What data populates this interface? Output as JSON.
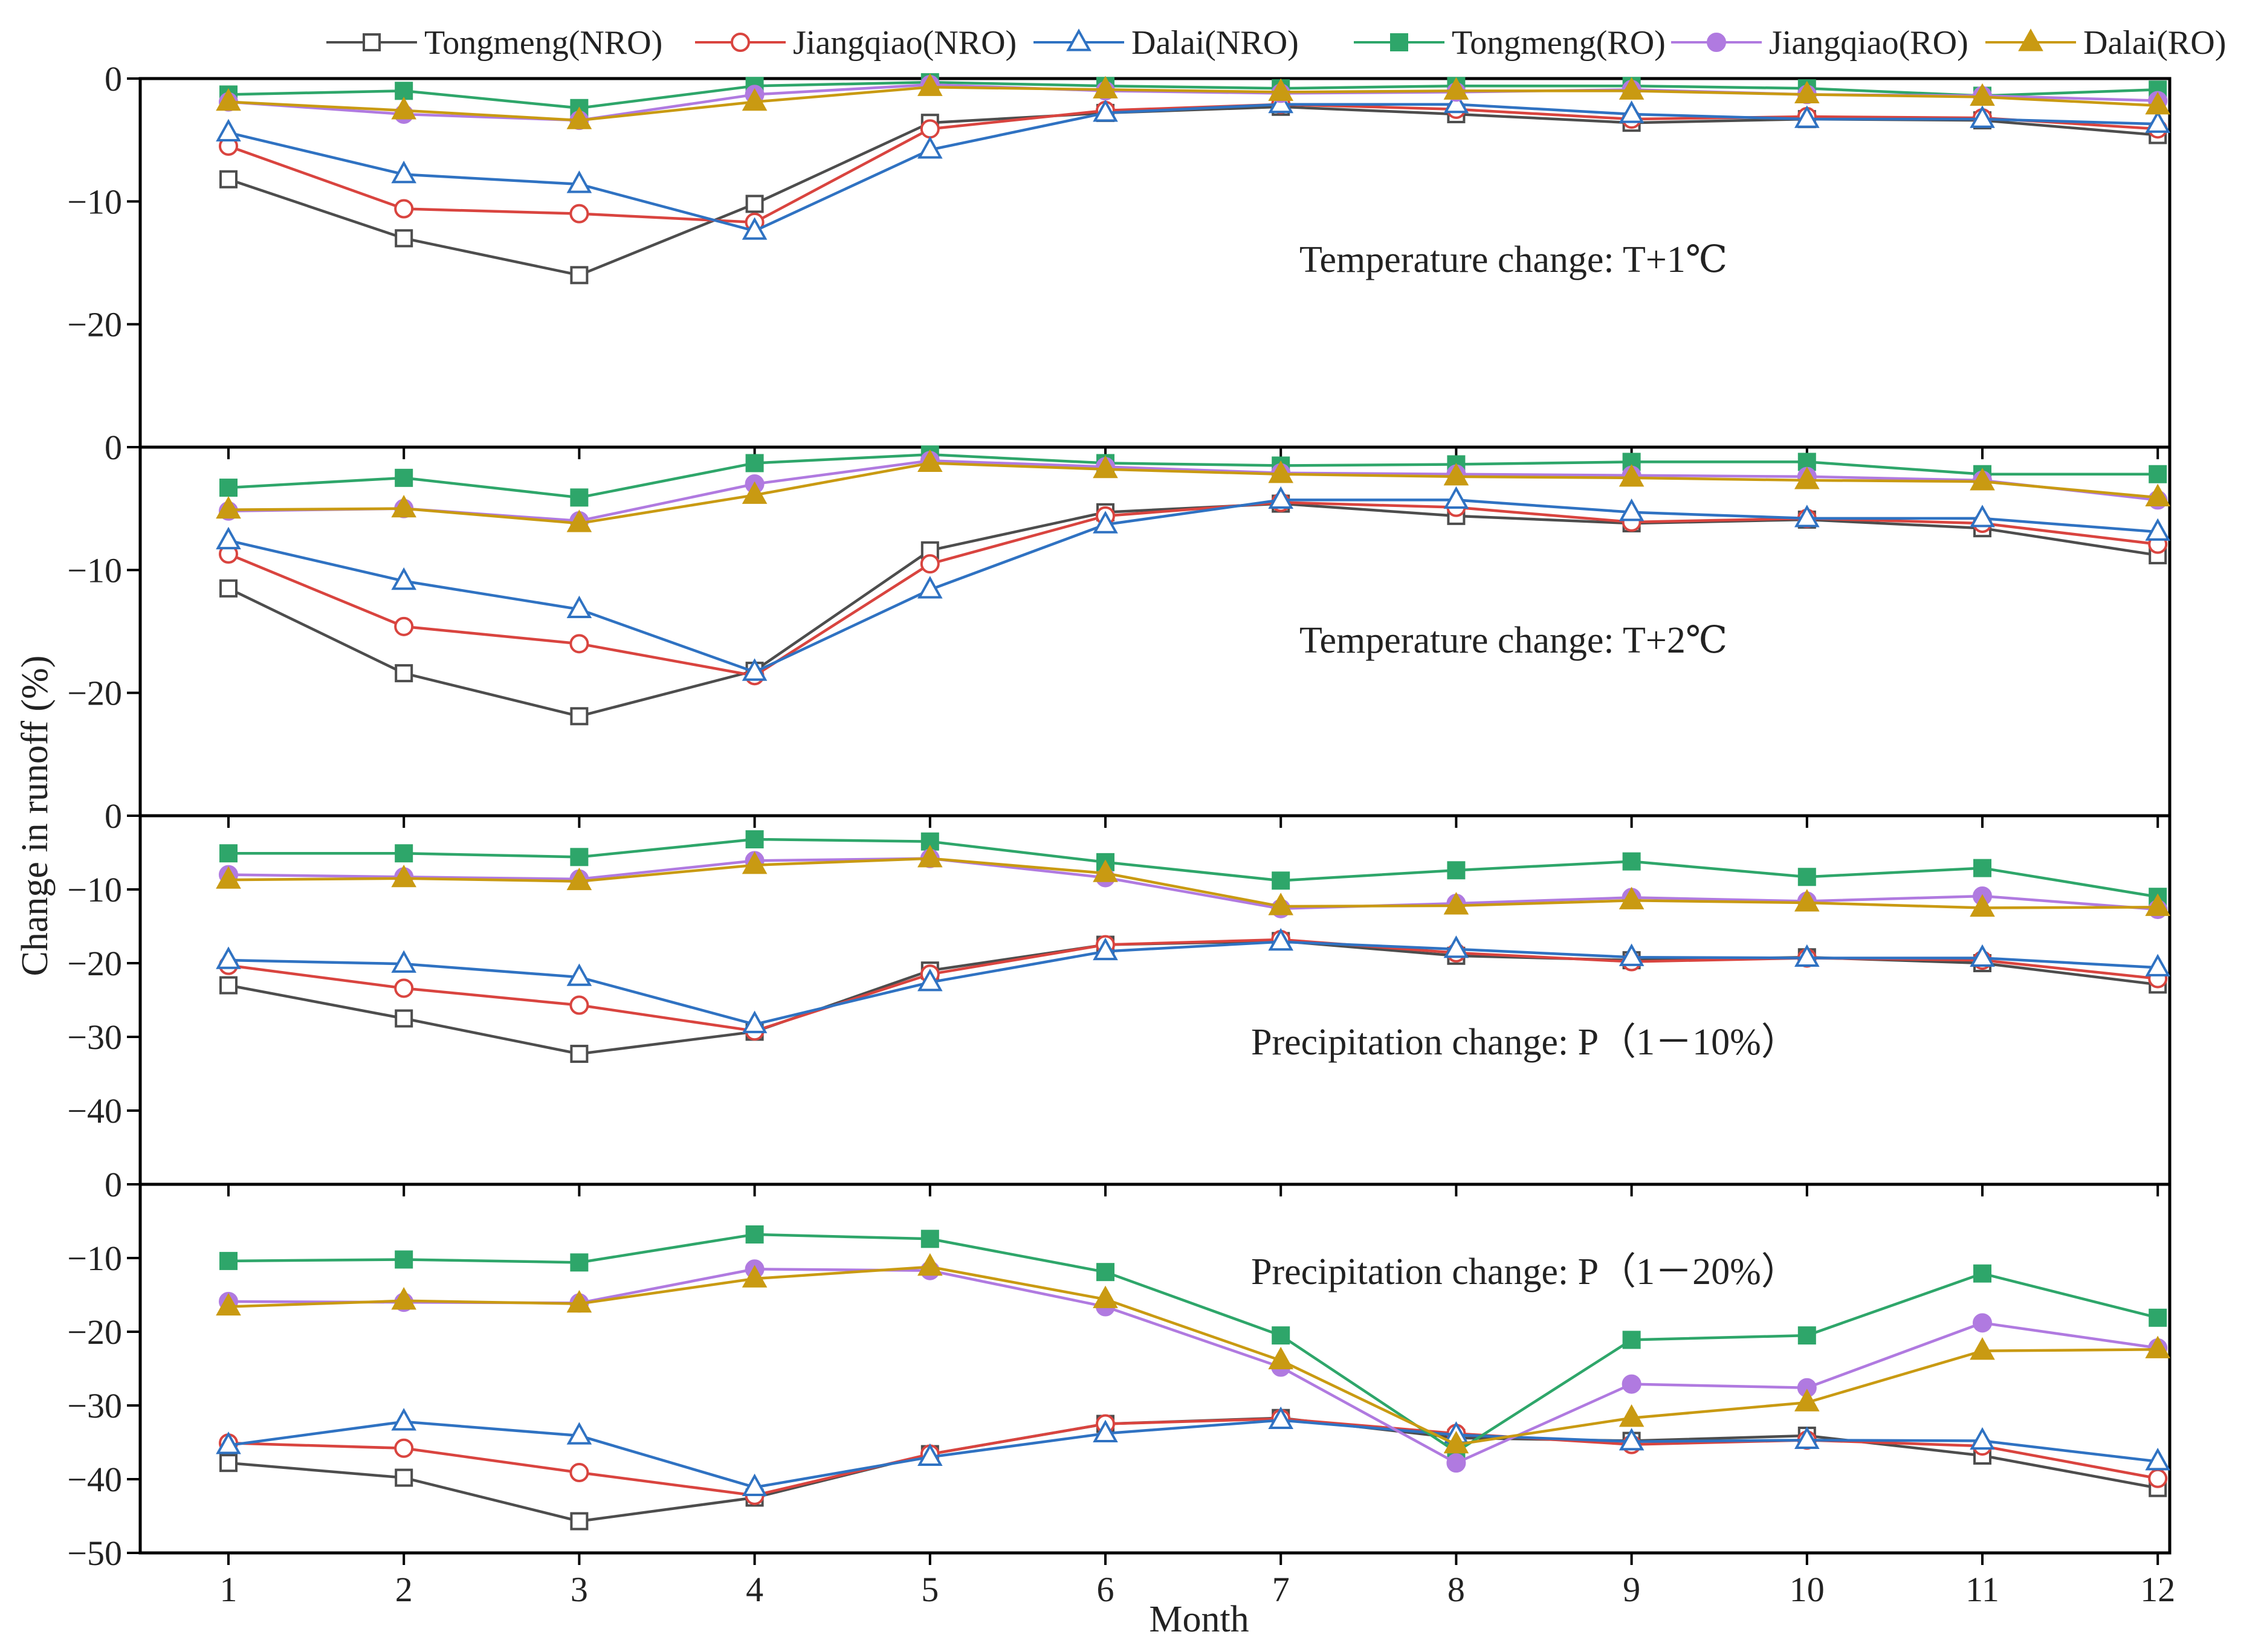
{
  "chart_data": {
    "type": "line",
    "xlabel": "Month",
    "ylabel": "Change in runoff (%)",
    "x": [
      1,
      2,
      3,
      4,
      5,
      6,
      7,
      8,
      9,
      10,
      11,
      12
    ],
    "legend_position": "top",
    "grid": false,
    "legend": [
      {
        "name": "Tongmeng(NRO)",
        "color": "#4d4d4d",
        "marker": "square-open"
      },
      {
        "name": "Jiangqiao(NRO)",
        "color": "#d9443f",
        "marker": "circle-open"
      },
      {
        "name": "Dalai(NRO)",
        "color": "#2f72c2",
        "marker": "triangle-open"
      },
      {
        "name": "Tongmeng(RO)",
        "color": "#2ea66a",
        "marker": "square-filled"
      },
      {
        "name": "Jiangqiao(RO)",
        "color": "#b07ae0",
        "marker": "circle-filled"
      },
      {
        "name": "Dalai(RO)",
        "color": "#c99a12",
        "marker": "triangle-filled"
      }
    ],
    "panels": [
      {
        "annotation": "Temperature change: T+1℃",
        "ylim": [
          -30,
          0
        ],
        "yticks": [
          0,
          -10,
          -20
        ],
        "series": [
          {
            "values": [
              -8.2,
              -13,
              -16,
              -10.2,
              -3.6,
              -2.8,
              -2.3,
              -2.9,
              -3.6,
              -3.3,
              -3.4,
              -4.6
            ]
          },
          {
            "values": [
              -5.5,
              -10.6,
              -11,
              -11.7,
              -4.1,
              -2.6,
              -2.1,
              -2.5,
              -3.3,
              -3.1,
              -3.2,
              -4.1
            ]
          },
          {
            "values": [
              -4.4,
              -7.8,
              -8.6,
              -12.4,
              -5.8,
              -2.8,
              -2.1,
              -2.1,
              -2.9,
              -3.3,
              -3.3,
              -3.7
            ]
          },
          {
            "values": [
              -1.3,
              -1.0,
              -2.4,
              -0.6,
              -0.3,
              -0.6,
              -0.8,
              -0.6,
              -0.6,
              -0.8,
              -1.4,
              -0.9
            ]
          },
          {
            "values": [
              -1.9,
              -2.9,
              -3.4,
              -1.3,
              -0.5,
              -1.0,
              -1.2,
              -1.1,
              -0.9,
              -1.3,
              -1.4,
              -1.8
            ]
          },
          {
            "values": [
              -1.9,
              -2.6,
              -3.4,
              -1.9,
              -0.7,
              -0.9,
              -1.1,
              -1.0,
              -1.0,
              -1.3,
              -1.5,
              -2.2
            ]
          }
        ]
      },
      {
        "annotation": "Temperature change: T+2℃",
        "ylim": [
          -30,
          0
        ],
        "yticks": [
          0,
          -10,
          -20
        ],
        "series": [
          {
            "values": [
              -11.5,
              -18.4,
              -21.9,
              -18.2,
              -8.4,
              -5.3,
              -4.6,
              -5.6,
              -6.2,
              -5.9,
              -6.6,
              -8.8
            ]
          },
          {
            "values": [
              -8.7,
              -14.6,
              -16,
              -18.6,
              -9.5,
              -5.6,
              -4.5,
              -4.9,
              -6.1,
              -5.8,
              -6.2,
              -7.9
            ]
          },
          {
            "values": [
              -7.6,
              -10.9,
              -13.2,
              -18.3,
              -11.6,
              -6.3,
              -4.3,
              -4.3,
              -5.3,
              -5.8,
              -5.8,
              -6.9
            ]
          },
          {
            "values": [
              -3.3,
              -2.5,
              -4.1,
              -1.3,
              -0.6,
              -1.3,
              -1.5,
              -1.4,
              -1.2,
              -1.2,
              -2.2,
              -2.2
            ]
          },
          {
            "values": [
              -5.2,
              -5,
              -6,
              -3,
              -1.1,
              -1.6,
              -2.1,
              -2.2,
              -2.3,
              -2.4,
              -2.7,
              -4.3
            ]
          },
          {
            "values": [
              -5.1,
              -5,
              -6.2,
              -3.9,
              -1.3,
              -1.8,
              -2.2,
              -2.4,
              -2.5,
              -2.7,
              -2.8,
              -4.1
            ]
          }
        ]
      },
      {
        "annotation": "Precipitation change: P（1－10%）",
        "ylim": [
          -50,
          0
        ],
        "yticks": [
          0,
          -10,
          -20,
          -30,
          -40
        ],
        "series": [
          {
            "values": [
              -23,
              -27.5,
              -32.3,
              -29.3,
              -21,
              -17.5,
              -17,
              -19,
              -19.6,
              -19.2,
              -20,
              -22.9
            ]
          },
          {
            "values": [
              -20.3,
              -23.4,
              -25.7,
              -29.2,
              -21.5,
              -17.5,
              -16.8,
              -18.6,
              -19.8,
              -19.3,
              -19.6,
              -22.1
            ]
          },
          {
            "values": [
              -19.6,
              -20.1,
              -21.9,
              -28.3,
              -22.6,
              -18.4,
              -17.1,
              -18.1,
              -19.2,
              -19.3,
              -19.3,
              -20.6
            ]
          },
          {
            "values": [
              -5.1,
              -5.1,
              -5.6,
              -3.2,
              -3.5,
              -6.3,
              -8.8,
              -7.4,
              -6.2,
              -8.3,
              -7.1,
              -11
            ]
          },
          {
            "values": [
              -8,
              -8.3,
              -8.6,
              -6.1,
              -5.8,
              -8.4,
              -12.6,
              -11.9,
              -11.1,
              -11.6,
              -10.9,
              -12.7
            ]
          },
          {
            "values": [
              -8.7,
              -8.5,
              -8.9,
              -6.7,
              -5.8,
              -7.8,
              -12.3,
              -12.2,
              -11.5,
              -11.8,
              -12.5,
              -12.4
            ]
          }
        ]
      },
      {
        "annotation": "Precipitation change: P（1－20%）",
        "ylim": [
          -50,
          0
        ],
        "yticks": [
          0,
          -10,
          -20,
          -30,
          -40,
          -50
        ],
        "series": [
          {
            "values": [
              -37.8,
              -39.8,
              -45.7,
              -42.5,
              -36.6,
              -32.5,
              -31.7,
              -34.4,
              -34.8,
              -34.1,
              -36.8,
              -41.2
            ]
          },
          {
            "values": [
              -35.1,
              -35.8,
              -39.1,
              -42.2,
              -36.6,
              -32.5,
              -31.8,
              -33.8,
              -35.3,
              -34.7,
              -35.5,
              -39.9
            ]
          },
          {
            "values": [
              -35.4,
              -32.2,
              -34.1,
              -41.1,
              -37,
              -33.8,
              -32,
              -34,
              -34.9,
              -34.7,
              -34.8,
              -37.6
            ]
          },
          {
            "values": [
              -10.4,
              -10.2,
              -10.6,
              -6.8,
              -7.4,
              -11.9,
              -20.5,
              -36.3,
              -21.1,
              -20.5,
              -12.1,
              -18.1
            ]
          },
          {
            "values": [
              -15.9,
              -16,
              -16.1,
              -11.5,
              -11.7,
              -16.6,
              -24.8,
              -37.8,
              -27.1,
              -27.6,
              -18.8,
              -22.2
            ]
          },
          {
            "values": [
              -16.6,
              -15.8,
              -16.2,
              -12.8,
              -11.2,
              -15.6,
              -23.9,
              -35.3,
              -31.7,
              -29.6,
              -22.6,
              -22.4
            ]
          }
        ]
      }
    ]
  }
}
